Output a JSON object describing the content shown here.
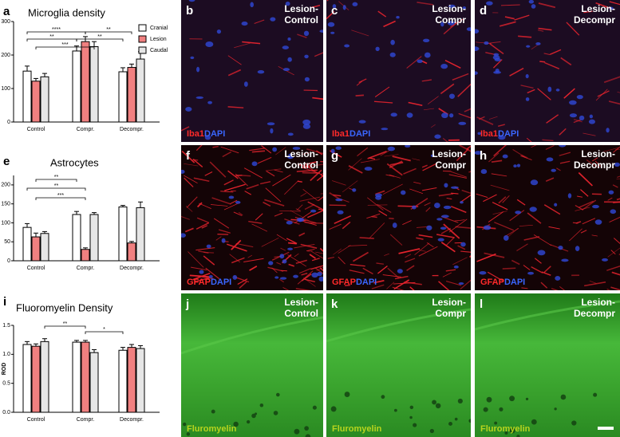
{
  "chart_data": [
    {
      "type": "bar",
      "panel": "a",
      "title": "Microglia density",
      "categories": [
        "Control",
        "Compr.",
        "Decompr."
      ],
      "series": [
        {
          "name": "Cranial",
          "color": "#ffffff",
          "values": [
            152,
            212,
            150
          ],
          "errors": [
            15,
            15,
            12
          ]
        },
        {
          "name": "Lesion",
          "color": "#f08080",
          "values": [
            122,
            240,
            163
          ],
          "errors": [
            8,
            15,
            10
          ]
        },
        {
          "name": "Caudal",
          "color": "#e6e6e6",
          "values": [
            135,
            225,
            188
          ],
          "errors": [
            10,
            15,
            22
          ]
        }
      ],
      "ylim": [
        0,
        300
      ],
      "yticks": [
        0,
        100,
        200,
        300
      ],
      "legend": "upper right",
      "annotations": [
        "****",
        "**",
        "**",
        "**",
        "***"
      ]
    },
    {
      "type": "bar",
      "panel": "e",
      "title": "Astrocytes",
      "categories": [
        "Control",
        "Compr.",
        "Decompr."
      ],
      "series": [
        {
          "color": "#ffffff",
          "values": [
            88,
            122,
            142
          ],
          "errors": [
            10,
            8,
            4
          ]
        },
        {
          "color": "#f08080",
          "values": [
            63,
            30,
            47
          ],
          "errors": [
            10,
            4,
            4
          ]
        },
        {
          "color": "#e6e6e6",
          "values": [
            72,
            122,
            140
          ],
          "errors": [
            5,
            5,
            15
          ]
        }
      ],
      "ylim": [
        0,
        225
      ],
      "yticks": [
        0,
        50,
        100,
        150,
        200
      ],
      "annotations": [
        "**",
        "**",
        "***"
      ]
    },
    {
      "type": "bar",
      "panel": "i",
      "title": "Fluoromyelin Density",
      "ylabel": "ROD",
      "categories": [
        "Control",
        "Compr.",
        "Decompr."
      ],
      "series": [
        {
          "color": "#ffffff",
          "values": [
            1.17,
            1.21,
            1.07
          ],
          "errors": [
            0.05,
            0.03,
            0.05
          ]
        },
        {
          "color": "#f08080",
          "values": [
            1.14,
            1.21,
            1.12
          ],
          "errors": [
            0.04,
            0.03,
            0.05
          ]
        },
        {
          "color": "#e6e6e6",
          "values": [
            1.22,
            1.03,
            1.1
          ],
          "errors": [
            0.05,
            0.05,
            0.05
          ]
        }
      ],
      "ylim": [
        0,
        1.5
      ],
      "yticks": [
        {
          "value": 0,
          "label": "0.0"
        },
        {
          "value": 0.5,
          "label": "0.5"
        },
        {
          "value": 1,
          "label": "1.0"
        },
        {
          "value": 1.5,
          "label": "1.5"
        }
      ],
      "annotations": [
        "**",
        "*"
      ]
    }
  ],
  "panels": [
    {
      "letter": "b",
      "title": [
        "Lesion-",
        "Control"
      ],
      "stain": [
        "Iba1",
        "DAPI"
      ]
    },
    {
      "letter": "c",
      "title": [
        "Lesion-",
        "Compr"
      ],
      "stain": [
        "Iba1",
        "DAPI"
      ]
    },
    {
      "letter": "d",
      "title": [
        "Lesion-",
        "Decompr"
      ],
      "stain": [
        "Iba1",
        "DAPI"
      ]
    },
    {
      "letter": "f",
      "title": [
        "Lesion-",
        "Control"
      ],
      "stain": [
        "GFAP",
        "DAPI"
      ]
    },
    {
      "letter": "g",
      "title": [
        "Lesion-",
        "Compr"
      ],
      "stain": [
        "GFAP",
        "DAPI"
      ]
    },
    {
      "letter": "h",
      "title": [
        "Lesion-",
        "Decompr"
      ],
      "stain": [
        "GFAP",
        "DAPI"
      ]
    },
    {
      "letter": "j",
      "title": [
        "Lesion-",
        "Control"
      ],
      "stain": [
        "Fluromyelin"
      ]
    },
    {
      "letter": "k",
      "title": [
        "Lesion-",
        "Compr"
      ],
      "stain": [
        "Fluromyelin"
      ]
    },
    {
      "letter": "l",
      "title": [
        "Lesion-",
        "Decompr"
      ],
      "stain": [
        "Fluromyelin"
      ]
    }
  ]
}
